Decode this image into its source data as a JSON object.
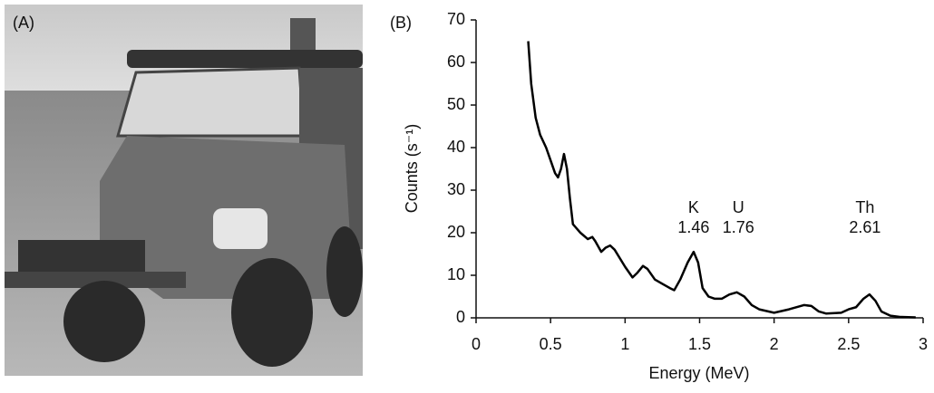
{
  "photo": {
    "label": "(A)"
  },
  "chart_data": {
    "type": "line",
    "panel_label": "(B)",
    "x_label": "Energy (MeV)",
    "y_label": "Counts (s⁻¹)",
    "x": [
      0.35,
      0.37,
      0.4,
      0.43,
      0.47,
      0.5,
      0.53,
      0.55,
      0.57,
      0.59,
      0.61,
      0.63,
      0.65,
      0.7,
      0.75,
      0.78,
      0.8,
      0.84,
      0.87,
      0.9,
      0.93,
      1.0,
      1.05,
      1.08,
      1.12,
      1.15,
      1.2,
      1.25,
      1.3,
      1.33,
      1.37,
      1.42,
      1.46,
      1.49,
      1.52,
      1.56,
      1.6,
      1.65,
      1.7,
      1.75,
      1.8,
      1.85,
      1.9,
      2.0,
      2.1,
      2.2,
      2.25,
      2.3,
      2.35,
      2.45,
      2.5,
      2.55,
      2.6,
      2.64,
      2.68,
      2.72,
      2.78,
      2.85,
      2.95
    ],
    "values": [
      65,
      55,
      47,
      43,
      40,
      37,
      34,
      33,
      35,
      38.5,
      35,
      28,
      22,
      20,
      18.5,
      19,
      18,
      15.5,
      16.5,
      17,
      16,
      12,
      9.5,
      10.5,
      12.2,
      11.5,
      9,
      8,
      7,
      6.5,
      9,
      13,
      15.5,
      13,
      7,
      5,
      4.5,
      4.5,
      5.5,
      6,
      5,
      3,
      2,
      1.2,
      2,
      3,
      2.8,
      1.5,
      1,
      1.2,
      2,
      2.5,
      4.5,
      5.5,
      4,
      1.5,
      0.5,
      0.2,
      0.1
    ],
    "color": "#000000",
    "xlim": [
      0,
      3
    ],
    "xticks": [
      0,
      0.5,
      1,
      1.5,
      2,
      2.5,
      3
    ],
    "ylim": [
      0,
      70
    ],
    "yticks": [
      0,
      10,
      20,
      30,
      40,
      50,
      60,
      70
    ],
    "annotations": [
      {
        "text": "K",
        "energy": 1.46
      },
      {
        "text": "U",
        "energy": 1.76
      },
      {
        "text": "Th",
        "energy": 2.61
      }
    ]
  }
}
